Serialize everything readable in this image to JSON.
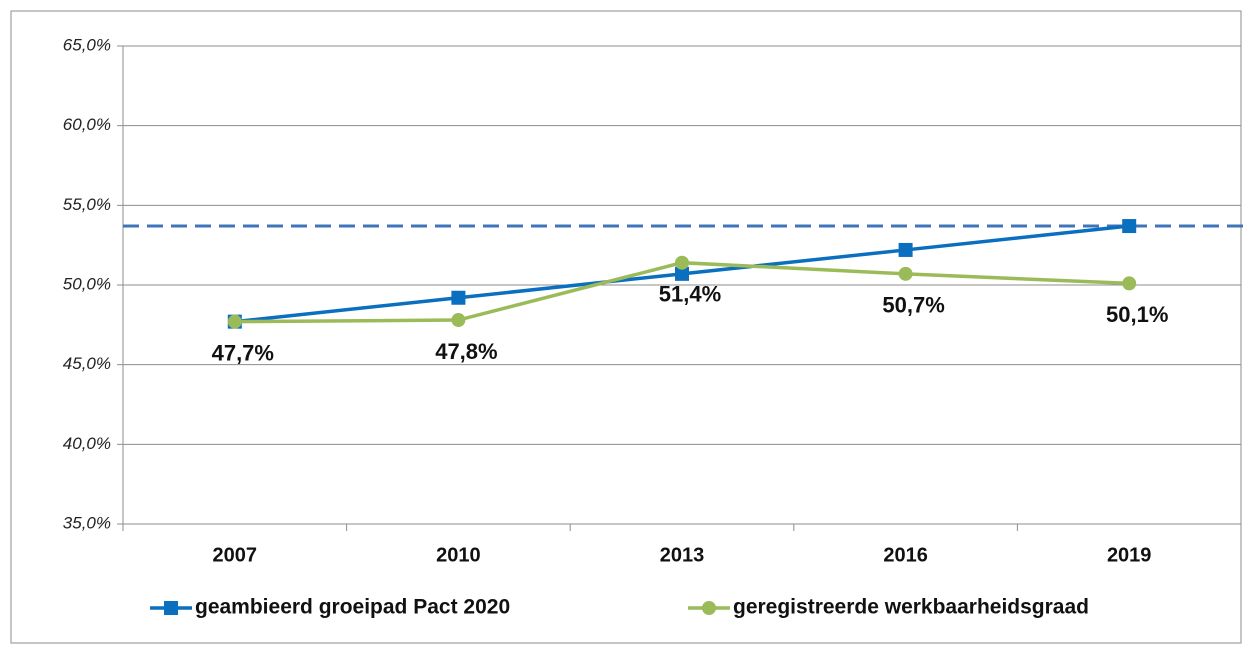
{
  "chart_data": {
    "type": "line",
    "categories": [
      "2007",
      "2010",
      "2013",
      "2016",
      "2019"
    ],
    "series": [
      {
        "name": "geambieerd groeipad Pact 2020",
        "color": "#0a6fbf",
        "marker": "square",
        "values": [
          47.7,
          49.2,
          50.7,
          52.2,
          53.7
        ]
      },
      {
        "name": "geregistreerde werkbaarheidsgraad",
        "color": "#9bbb59",
        "marker": "circle",
        "values": [
          47.7,
          47.8,
          51.4,
          50.7,
          50.1
        ],
        "value_labels": [
          "47,7%",
          "47,8%",
          "51,4%",
          "50,7%",
          "50,1%"
        ]
      }
    ],
    "reference_line": {
      "value": 53.7,
      "color": "#3f74b8"
    },
    "ylim": [
      35,
      65
    ],
    "yticks": [
      {
        "value": 35,
        "label": "35,0%"
      },
      {
        "value": 40,
        "label": "40,0%"
      },
      {
        "value": 45,
        "label": "45,0%"
      },
      {
        "value": 50,
        "label": "50,0%"
      },
      {
        "value": 55,
        "label": "55,0%"
      },
      {
        "value": 60,
        "label": "60,0%"
      },
      {
        "value": 65,
        "label": "65,0%"
      }
    ],
    "grid": true,
    "legend": "bottom"
  }
}
